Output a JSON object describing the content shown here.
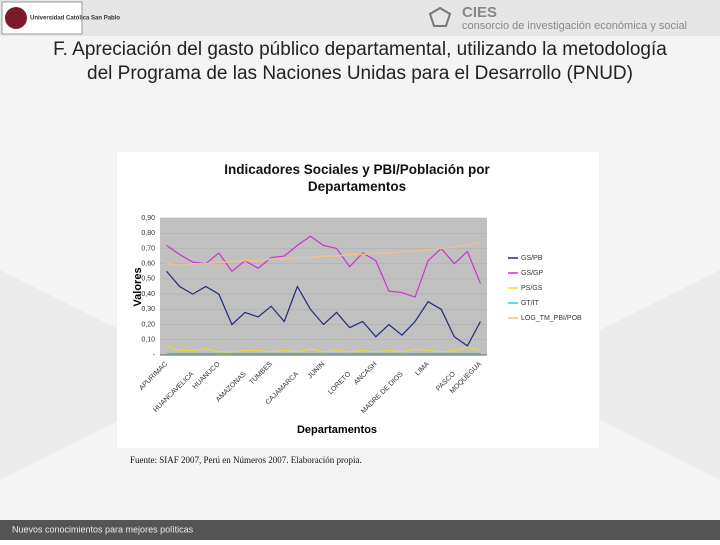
{
  "header": {
    "university": "Universidad Católica San Pablo",
    "logo": "CIES",
    "tagline": "consorcio de investigación económica y social"
  },
  "slide_title": "F. Apreciación del gasto público departamental, utilizando la metodología del Programa de las Naciones Unidas para el Desarrollo (PNUD)",
  "source": "Fuente: SIAF 2007, Perú en Números 2007. Elaboración propia.",
  "footer": "Nuevos conocimientos para mejores políticas",
  "chart_data": {
    "type": "line",
    "title": "Indicadores Sociales y PBI/Población por Departamentos",
    "x_label": "Departamentos",
    "y_label": "Valores",
    "categories": [
      "APURIMAC",
      null,
      "HUANCAVELICA",
      null,
      "HUANUCO",
      null,
      "AMAZONAS",
      null,
      "TUMBES",
      null,
      "CAJAMARCA",
      null,
      "JUNIN",
      null,
      "LORETO",
      null,
      "ANCASH",
      null,
      "MADRE DE DIOS",
      null,
      "LIMA",
      null,
      "PASCO",
      null,
      "MOQUEGUA"
    ],
    "series": [
      {
        "name": "GS/PB",
        "color": "#1f2a7a",
        "values": [
          0.55,
          0.45,
          0.4,
          0.45,
          0.4,
          0.2,
          0.28,
          0.25,
          0.32,
          0.22,
          0.45,
          0.3,
          0.2,
          0.28,
          0.18,
          0.22,
          0.12,
          0.2,
          0.13,
          0.22,
          0.35,
          0.3,
          0.12,
          0.06,
          0.22
        ]
      },
      {
        "name": "GS/GP",
        "color": "#cc33cc",
        "values": [
          0.72,
          0.66,
          0.61,
          0.6,
          0.67,
          0.55,
          0.62,
          0.57,
          0.64,
          0.65,
          0.72,
          0.78,
          0.72,
          0.7,
          0.58,
          0.67,
          0.62,
          0.42,
          0.41,
          0.38,
          0.62,
          0.7,
          0.6,
          0.68,
          0.47
        ]
      },
      {
        "name": "PS/GS",
        "color": "#e8d840",
        "values": [
          0.06,
          0.03,
          0.03,
          0.04,
          0.02,
          0.02,
          0.03,
          0.03,
          0.02,
          0.03,
          0.02,
          0.04,
          0.02,
          0.03,
          0.02,
          0.03,
          0.02,
          0.03,
          0.02,
          0.04,
          0.03,
          0.02,
          0.03,
          0.05,
          0.03
        ]
      },
      {
        "name": "GT/IT",
        "color": "#33cccc",
        "values": [
          0.01,
          0.01,
          0.01,
          0.01,
          0.01,
          0.01,
          0.01,
          0.01,
          0.01,
          0.01,
          0.01,
          0.01,
          0.01,
          0.01,
          0.01,
          0.01,
          0.01,
          0.01,
          0.01,
          0.01,
          0.01,
          0.01,
          0.01,
          0.01,
          0.01
        ]
      },
      {
        "name": "LOG_TM_PBI/POB",
        "color": "#f5c08a",
        "values": [
          0.6,
          0.59,
          0.6,
          0.6,
          0.61,
          0.61,
          0.62,
          0.62,
          0.63,
          0.63,
          0.64,
          0.64,
          0.65,
          0.65,
          0.66,
          0.66,
          0.67,
          0.67,
          0.68,
          0.68,
          0.69,
          0.7,
          0.71,
          0.72,
          0.74
        ]
      }
    ],
    "ylim": [
      0,
      0.9
    ],
    "yticks": [
      {
        "value": 0,
        "label": "-"
      },
      {
        "value": 0.1,
        "label": "0,10"
      },
      {
        "value": 0.2,
        "label": "0,20"
      },
      {
        "value": 0.3,
        "label": "0,30"
      },
      {
        "value": 0.4,
        "label": "0,40"
      },
      {
        "value": 0.5,
        "label": "0,50"
      },
      {
        "value": 0.6,
        "label": "0,60"
      },
      {
        "value": 0.7,
        "label": "0,70"
      },
      {
        "value": 0.8,
        "label": "0,80"
      },
      {
        "value": 0.9,
        "label": "0,90"
      }
    ],
    "grid": true,
    "legend": "right"
  }
}
